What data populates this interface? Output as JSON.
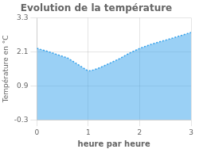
{
  "chart_data": {
    "type": "area",
    "title": "Evolution de la température",
    "xlabel": "heure par heure",
    "ylabel": "Température en °C",
    "x": [
      0,
      0.2,
      0.4,
      0.6,
      0.8,
      1.0,
      1.1,
      1.2,
      1.4,
      1.6,
      1.8,
      2.0,
      2.2,
      2.4,
      2.6,
      2.8,
      3.0
    ],
    "values": [
      2.22,
      2.12,
      2.0,
      1.88,
      1.65,
      1.42,
      1.46,
      1.52,
      1.68,
      1.85,
      2.05,
      2.22,
      2.35,
      2.46,
      2.56,
      2.67,
      2.78
    ],
    "xlim": [
      0,
      3
    ],
    "ylim": [
      -0.3,
      3.3
    ],
    "xticks": [
      0,
      1,
      2,
      3
    ],
    "yticks": [
      -0.3,
      0.9,
      2.1,
      3.3
    ],
    "line_style": "dotted",
    "grid": true
  }
}
